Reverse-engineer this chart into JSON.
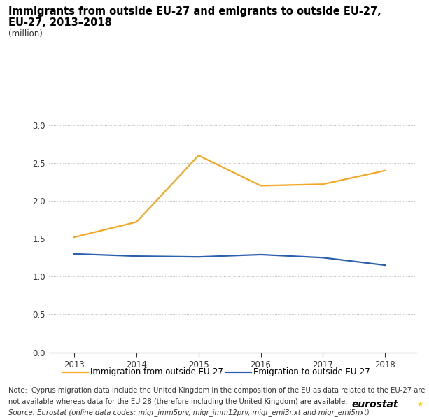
{
  "title_line1": "Immigrants from outside EU-27 and emigrants to outside EU-27,",
  "title_line2": "EU-27, 2013–2018",
  "subtitle": "(million)",
  "years": [
    2013,
    2014,
    2015,
    2016,
    2017,
    2018
  ],
  "immigration": [
    1.52,
    1.72,
    2.6,
    2.2,
    2.22,
    2.4
  ],
  "emigration": [
    1.3,
    1.27,
    1.26,
    1.29,
    1.25,
    1.15
  ],
  "immigration_color": "#F5A623",
  "emigration_color": "#2B5FAD",
  "immigration_label": "Immigration from outside EU-27",
  "emigration_label": "Emigration to outside EU-27",
  "ylim": [
    0.0,
    3.0
  ],
  "yticks": [
    0.0,
    0.5,
    1.0,
    1.5,
    2.0,
    2.5,
    3.0
  ],
  "note_line1": "Note:  Cyprus migration data include the United Kingdom in the composition of the EU as data related to the EU-27 are",
  "note_line2": "not available whereas data for the EU-28 (therefore including the United Kingdom) are available.",
  "note_line3": "Source: Eurostat (online data codes: migr_imm5prv, migr_imm12prv, migr_emi3nxt and migr_emi5nxt)",
  "bg_color": "#FFFFFF",
  "grid_color": "#AAAAAA",
  "line_width": 1.6,
  "title_fontsize": 10.5,
  "subtitle_fontsize": 8.5,
  "tick_fontsize": 8.5,
  "legend_fontsize": 8.5,
  "note_fontsize": 7.2,
  "eurostat_fontsize": 10
}
